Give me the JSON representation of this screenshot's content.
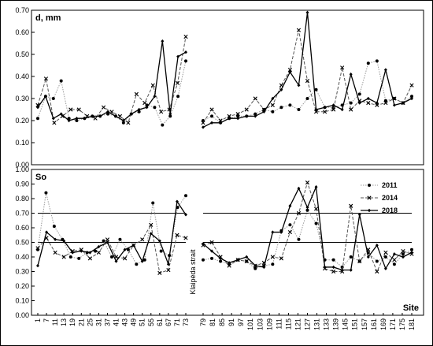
{
  "chart_data": [
    {
      "type": "line",
      "ylabel": "d, mm",
      "ylim": [
        0,
        0.7
      ],
      "yticks": [
        "0.00",
        "0.10",
        "0.20",
        "0.30",
        "0.40",
        "0.50",
        "0.60",
        "0.70"
      ],
      "series": [
        {
          "name": "2011",
          "style": "dotted",
          "marker": "circle",
          "color": "#999999",
          "left": [
            0.21,
            0.31,
            0.3,
            0.38,
            0.21,
            0.2,
            0.21,
            0.22,
            0.22,
            0.23,
            0.22,
            0.19,
            0.23,
            0.24,
            0.27,
            0.26,
            0.18,
            0.22,
            0.31,
            0.47
          ],
          "right": [
            0.2,
            0.22,
            0.19,
            0.21,
            0.22,
            0.22,
            0.23,
            0.25,
            0.24,
            0.26,
            0.27,
            0.25,
            0.3,
            0.34,
            0.26,
            0.26,
            0.27,
            0.28,
            0.32,
            0.46,
            0.47,
            0.29,
            0.3,
            0.28,
            0.31
          ]
        },
        {
          "name": "2014",
          "style": "dashed",
          "marker": "x",
          "color": "#555555",
          "left": [
            0.27,
            0.39,
            0.19,
            0.22,
            0.25,
            0.25,
            0.22,
            0.21,
            0.26,
            0.24,
            0.22,
            0.19,
            0.32,
            0.28,
            0.36,
            0.24,
            0.25,
            0.37,
            0.58
          ],
          "right": [
            0.19,
            0.25,
            0.2,
            0.22,
            0.23,
            0.25,
            0.3,
            0.25,
            0.27,
            0.36,
            0.43,
            0.61,
            0.38,
            0.24,
            0.24,
            0.25,
            0.44,
            0.25,
            0.29,
            0.28,
            0.27,
            0.28,
            0.3,
            0.28,
            0.36
          ]
        },
        {
          "name": "2018",
          "style": "solid",
          "marker": "diamond",
          "color": "#000000",
          "left": [
            0.26,
            0.31,
            0.21,
            0.23,
            0.2,
            0.21,
            0.21,
            0.22,
            0.22,
            0.24,
            0.22,
            0.2,
            0.23,
            0.25,
            0.26,
            0.31,
            0.56,
            0.23,
            0.49,
            0.51
          ],
          "right": [
            0.17,
            0.19,
            0.19,
            0.21,
            0.21,
            0.22,
            0.22,
            0.24,
            0.3,
            0.34,
            0.42,
            0.36,
            0.69,
            0.25,
            0.26,
            0.27,
            0.25,
            0.41,
            0.28,
            0.3,
            0.28,
            0.43,
            0.27,
            0.28,
            0.3
          ]
        }
      ]
    },
    {
      "type": "line",
      "ylabel": "So",
      "xlabel": "Site",
      "ylim": [
        0,
        1.0
      ],
      "yticks": [
        "0.00",
        "0.10",
        "0.20",
        "0.30",
        "0.40",
        "0.50",
        "0.60",
        "0.70",
        "0.80",
        "0.90",
        "1.00"
      ],
      "reference_lines": [
        0.5,
        0.7
      ],
      "legend": [
        "2011",
        "2014",
        "2018"
      ],
      "annotation": "Klaipėda strait",
      "xticks_left": [
        "1",
        "7",
        "11",
        "13",
        "19",
        "21",
        "25",
        "31",
        "37",
        "41",
        "43",
        "49",
        "51",
        "55",
        "61",
        "67",
        "71",
        "73"
      ],
      "xticks_right": [
        "79",
        "81",
        "85",
        "91",
        "97",
        "101",
        "103",
        "109",
        "111",
        "115",
        "121",
        "127",
        "131",
        "133",
        "139",
        "145",
        "151",
        "157",
        "161",
        "169",
        "171",
        "175",
        "181"
      ],
      "series": [
        {
          "name": "2011",
          "left": [
            0.45,
            0.84,
            0.61,
            0.52,
            0.4,
            0.39,
            0.43,
            0.44,
            0.51,
            0.4,
            0.52,
            0.45,
            0.35,
            0.38,
            0.77,
            0.44,
            0.41,
            0.74,
            0.82
          ],
          "right": [
            0.38,
            0.39,
            0.37,
            0.35,
            0.38,
            0.37,
            0.32,
            0.34,
            0.35,
            0.58,
            0.62,
            0.52,
            0.72,
            0.63,
            0.38,
            0.38,
            0.33,
            0.4,
            0.37,
            0.43,
            0.37,
            0.4,
            0.35,
            0.42,
            0.45
          ]
        },
        {
          "name": "2014",
          "left": [
            0.46,
            0.53,
            0.43,
            0.4,
            0.44,
            0.45,
            0.39,
            0.43,
            0.52,
            0.4,
            0.39,
            0.48,
            0.52,
            0.62,
            0.29,
            0.31,
            0.55,
            0.53
          ],
          "right": [
            0.48,
            0.5,
            0.4,
            0.34,
            0.38,
            0.37,
            0.34,
            0.36,
            0.4,
            0.39,
            0.57,
            0.7,
            0.91,
            0.73,
            0.32,
            0.3,
            0.3,
            0.75,
            0.37,
            0.45,
            0.3,
            0.43,
            0.38,
            0.44,
            0.42
          ]
        },
        {
          "name": "2018",
          "left": [
            0.34,
            0.57,
            0.52,
            0.51,
            0.43,
            0.44,
            0.43,
            0.47,
            0.5,
            0.37,
            0.45,
            0.48,
            0.37,
            0.56,
            0.51,
            0.35,
            0.78,
            0.69
          ],
          "right": [
            0.49,
            0.44,
            0.39,
            0.36,
            0.38,
            0.4,
            0.34,
            0.33,
            0.57,
            0.57,
            0.75,
            0.87,
            0.74,
            0.88,
            0.33,
            0.33,
            0.31,
            0.31,
            0.69,
            0.4,
            0.48,
            0.32,
            0.42,
            0.4,
            0.43
          ]
        }
      ]
    }
  ]
}
